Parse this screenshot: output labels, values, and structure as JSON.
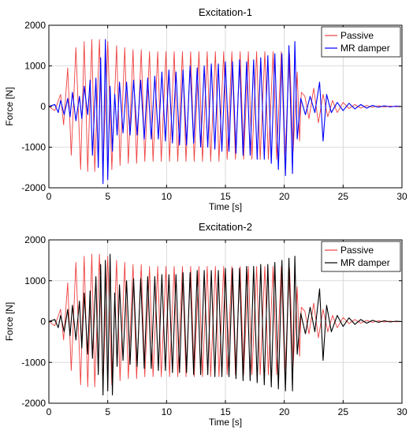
{
  "chart_data": [
    {
      "type": "line",
      "title": "Excitation-1",
      "xlabel": "Time [s]",
      "ylabel": "Force [N]",
      "xlim": [
        0,
        30
      ],
      "ylim": [
        -2000,
        2000
      ],
      "xticks": [
        0,
        5,
        10,
        15,
        20,
        25,
        30
      ],
      "yticks": [
        -2000,
        -1000,
        0,
        1000,
        2000
      ],
      "grid": true,
      "legend_position": "top-right",
      "series": [
        {
          "name": "Passive",
          "color": "#f04040",
          "x": [
            0,
            0.5,
            1.0,
            1.25,
            1.6,
            1.9,
            2.3,
            2.7,
            3.0,
            3.3,
            3.65,
            3.9,
            4.3,
            4.6,
            5.0,
            5.35,
            5.75,
            6.05,
            6.45,
            6.75,
            7.15,
            7.45,
            7.85,
            8.15,
            8.55,
            8.85,
            9.25,
            9.55,
            9.95,
            10.25,
            10.65,
            10.95,
            11.35,
            11.65,
            12.05,
            12.35,
            12.75,
            13.05,
            13.45,
            13.75,
            14.15,
            14.45,
            14.85,
            15.15,
            15.55,
            15.85,
            16.25,
            16.55,
            16.95,
            17.25,
            17.65,
            17.95,
            18.35,
            18.65,
            19.05,
            19.35,
            19.75,
            20.05,
            20.45,
            20.75,
            21.1,
            21.3,
            21.45,
            21.75,
            22.1,
            22.5,
            22.9,
            23.3,
            23.7,
            24.1,
            24.5,
            25.0,
            25.5,
            26.0,
            26.5,
            27.0,
            27.5,
            28.0,
            28.5,
            29.0,
            29.5,
            30.0
          ],
          "y": [
            0,
            -100,
            300,
            -450,
            950,
            -1200,
            1450,
            -1550,
            1600,
            -1600,
            1650,
            -1600,
            1650,
            -1550,
            1600,
            -1550,
            1500,
            -1450,
            1450,
            -1400,
            1400,
            -1400,
            1400,
            -1350,
            1350,
            -1350,
            1350,
            -1350,
            1350,
            -1350,
            1350,
            -1350,
            1350,
            -1350,
            1350,
            -1350,
            1350,
            -1350,
            1350,
            -1350,
            1350,
            -1350,
            1350,
            -1300,
            1350,
            -1300,
            1350,
            -1300,
            1350,
            -1300,
            1350,
            -1300,
            1350,
            -1300,
            1350,
            -1300,
            1350,
            -1300,
            1300,
            -1100,
            850,
            -850,
            350,
            250,
            -300,
            450,
            -400,
            300,
            -250,
            150,
            -150,
            100,
            -50,
            50,
            -40,
            30,
            -20,
            20,
            -10,
            10,
            -5,
            0
          ]
        },
        {
          "name": "MR damper",
          "color": "#0000ff",
          "x": [
            0,
            0.5,
            0.8,
            1.0,
            1.3,
            1.6,
            1.8,
            2.0,
            2.3,
            2.6,
            2.8,
            3.0,
            3.3,
            3.5,
            3.7,
            4.0,
            4.2,
            4.4,
            4.6,
            4.8,
            5.0,
            5.2,
            5.4,
            5.6,
            5.8,
            6.0,
            6.3,
            6.6,
            6.9,
            7.2,
            7.5,
            7.8,
            8.1,
            8.4,
            8.7,
            9.0,
            9.3,
            9.6,
            9.9,
            10.2,
            10.5,
            10.8,
            11.1,
            11.4,
            11.7,
            12.0,
            12.3,
            12.6,
            12.9,
            13.2,
            13.5,
            13.8,
            14.1,
            14.4,
            14.7,
            15.0,
            15.3,
            15.6,
            15.9,
            16.2,
            16.5,
            16.8,
            17.1,
            17.4,
            17.7,
            18.0,
            18.3,
            18.6,
            18.9,
            19.2,
            19.5,
            19.8,
            20.1,
            20.4,
            20.7,
            20.9,
            21.1,
            21.4,
            21.8,
            22.2,
            22.6,
            23.0,
            23.3,
            23.6,
            24.0,
            24.5,
            25.0,
            25.5,
            26.0,
            26.5,
            27.0,
            27.5,
            28.0,
            28.5,
            29.0,
            29.5,
            30.0
          ],
          "y": [
            0,
            50,
            -150,
            150,
            -200,
            200,
            -250,
            350,
            -350,
            250,
            -300,
            500,
            -200,
            650,
            -1200,
            700,
            -1500,
            1200,
            -1900,
            1650,
            -1800,
            500,
            -1100,
            300,
            -700,
            600,
            -650,
            600,
            -700,
            650,
            -700,
            650,
            -800,
            700,
            -800,
            750,
            -800,
            850,
            -850,
            900,
            -900,
            850,
            -950,
            900,
            -950,
            1000,
            -900,
            950,
            -1000,
            1000,
            -1000,
            1050,
            -1050,
            1050,
            -1100,
            1100,
            -1100,
            1100,
            -1150,
            1150,
            -1200,
            1100,
            -1200,
            1150,
            -1300,
            1200,
            -1300,
            1250,
            -1400,
            1300,
            -1550,
            1300,
            -1700,
            1500,
            -1650,
            1600,
            -800,
            200,
            -200,
            250,
            -150,
            600,
            -850,
            300,
            -150,
            100,
            -100,
            80,
            -60,
            50,
            -40,
            30,
            -20,
            20,
            -10,
            10,
            0
          ]
        }
      ]
    },
    {
      "type": "line",
      "title": "Excitation-2",
      "xlabel": "Time [s]",
      "ylabel": "Force [N]",
      "xlim": [
        0,
        30
      ],
      "ylim": [
        -2000,
        2000
      ],
      "xticks": [
        0,
        5,
        10,
        15,
        20,
        25,
        30
      ],
      "yticks": [
        -2000,
        -1000,
        0,
        1000,
        2000
      ],
      "grid": true,
      "legend_position": "top-right",
      "series": [
        {
          "name": "Passive",
          "color": "#f04040",
          "x": [
            0,
            0.5,
            1.0,
            1.25,
            1.6,
            1.9,
            2.3,
            2.7,
            3.0,
            3.3,
            3.65,
            3.9,
            4.3,
            4.6,
            5.0,
            5.35,
            5.75,
            6.05,
            6.45,
            6.75,
            7.15,
            7.45,
            7.85,
            8.15,
            8.55,
            8.85,
            9.25,
            9.55,
            9.95,
            10.25,
            10.65,
            10.95,
            11.35,
            11.65,
            12.05,
            12.35,
            12.75,
            13.05,
            13.45,
            13.75,
            14.15,
            14.45,
            14.85,
            15.15,
            15.55,
            15.85,
            16.25,
            16.55,
            16.95,
            17.25,
            17.65,
            17.95,
            18.35,
            18.65,
            19.05,
            19.35,
            19.75,
            20.05,
            20.45,
            20.75,
            21.1,
            21.3,
            21.45,
            21.75,
            22.1,
            22.5,
            22.9,
            23.3,
            23.7,
            24.1,
            24.5,
            25.0,
            25.5,
            26.0,
            26.5,
            27.0,
            27.5,
            28.0,
            28.5,
            29.0,
            29.5,
            30.0
          ],
          "y": [
            0,
            -100,
            300,
            -450,
            950,
            -1200,
            1450,
            -1550,
            1600,
            -1600,
            1650,
            -1600,
            1650,
            -1550,
            1600,
            -1550,
            1500,
            -1450,
            1450,
            -1400,
            1400,
            -1400,
            1400,
            -1350,
            1350,
            -1350,
            1350,
            -1350,
            1350,
            -1350,
            1350,
            -1350,
            1350,
            -1350,
            1350,
            -1350,
            1350,
            -1350,
            1350,
            -1350,
            1350,
            -1350,
            1350,
            -1300,
            1350,
            -1300,
            1350,
            -1300,
            1350,
            -1300,
            1350,
            -1300,
            1350,
            -1300,
            1350,
            -1300,
            1350,
            -1300,
            1300,
            -1100,
            850,
            -850,
            350,
            250,
            -300,
            450,
            -400,
            300,
            -250,
            150,
            -150,
            100,
            -50,
            50,
            -40,
            30,
            -20,
            20,
            -10,
            10,
            -5,
            0
          ]
        },
        {
          "name": "MR damper",
          "color": "#000000",
          "x": [
            0,
            0.5,
            0.8,
            1.0,
            1.3,
            1.6,
            1.8,
            2.0,
            2.3,
            2.6,
            2.8,
            3.0,
            3.3,
            3.5,
            3.7,
            4.0,
            4.2,
            4.4,
            4.6,
            4.8,
            5.0,
            5.2,
            5.4,
            5.6,
            5.8,
            6.0,
            6.3,
            6.6,
            6.9,
            7.2,
            7.5,
            7.8,
            8.1,
            8.4,
            8.7,
            9.0,
            9.3,
            9.6,
            9.9,
            10.2,
            10.5,
            10.8,
            11.1,
            11.4,
            11.7,
            12.0,
            12.3,
            12.6,
            12.9,
            13.2,
            13.5,
            13.8,
            14.1,
            14.4,
            14.7,
            15.0,
            15.3,
            15.6,
            15.9,
            16.2,
            16.5,
            16.8,
            17.1,
            17.4,
            17.7,
            18.0,
            18.3,
            18.6,
            18.9,
            19.2,
            19.5,
            19.8,
            20.1,
            20.4,
            20.7,
            20.9,
            21.1,
            21.4,
            21.8,
            22.2,
            22.6,
            23.0,
            23.3,
            23.6,
            24.0,
            24.5,
            25.0,
            25.5,
            26.0,
            26.5,
            27.0,
            27.5,
            28.0,
            28.5,
            29.0,
            29.5,
            30.0
          ],
          "y": [
            0,
            50,
            -150,
            150,
            -250,
            300,
            -350,
            400,
            -450,
            500,
            -650,
            700,
            -800,
            750,
            -900,
            1100,
            -1300,
            1400,
            -1800,
            1500,
            -1700,
            1650,
            -1800,
            700,
            -1100,
            900,
            -950,
            1000,
            -1050,
            1050,
            -1100,
            1050,
            -1150,
            1100,
            -1150,
            1100,
            -1200,
            1150,
            -1200,
            1150,
            -1250,
            1150,
            -1250,
            1200,
            -1250,
            1200,
            -1300,
            1250,
            -1300,
            1250,
            -1300,
            1250,
            -1350,
            1250,
            -1350,
            1300,
            -1350,
            1300,
            -1400,
            1300,
            -1450,
            1350,
            -1450,
            1350,
            -1500,
            1400,
            -1550,
            1400,
            -1600,
            1450,
            -1650,
            1500,
            -1700,
            1550,
            -1700,
            1600,
            -800,
            200,
            -300,
            350,
            -250,
            800,
            -950,
            400,
            -250,
            150,
            -120,
            90,
            -70,
            50,
            -40,
            30,
            -20,
            20,
            -10,
            10,
            0
          ]
        }
      ]
    }
  ]
}
